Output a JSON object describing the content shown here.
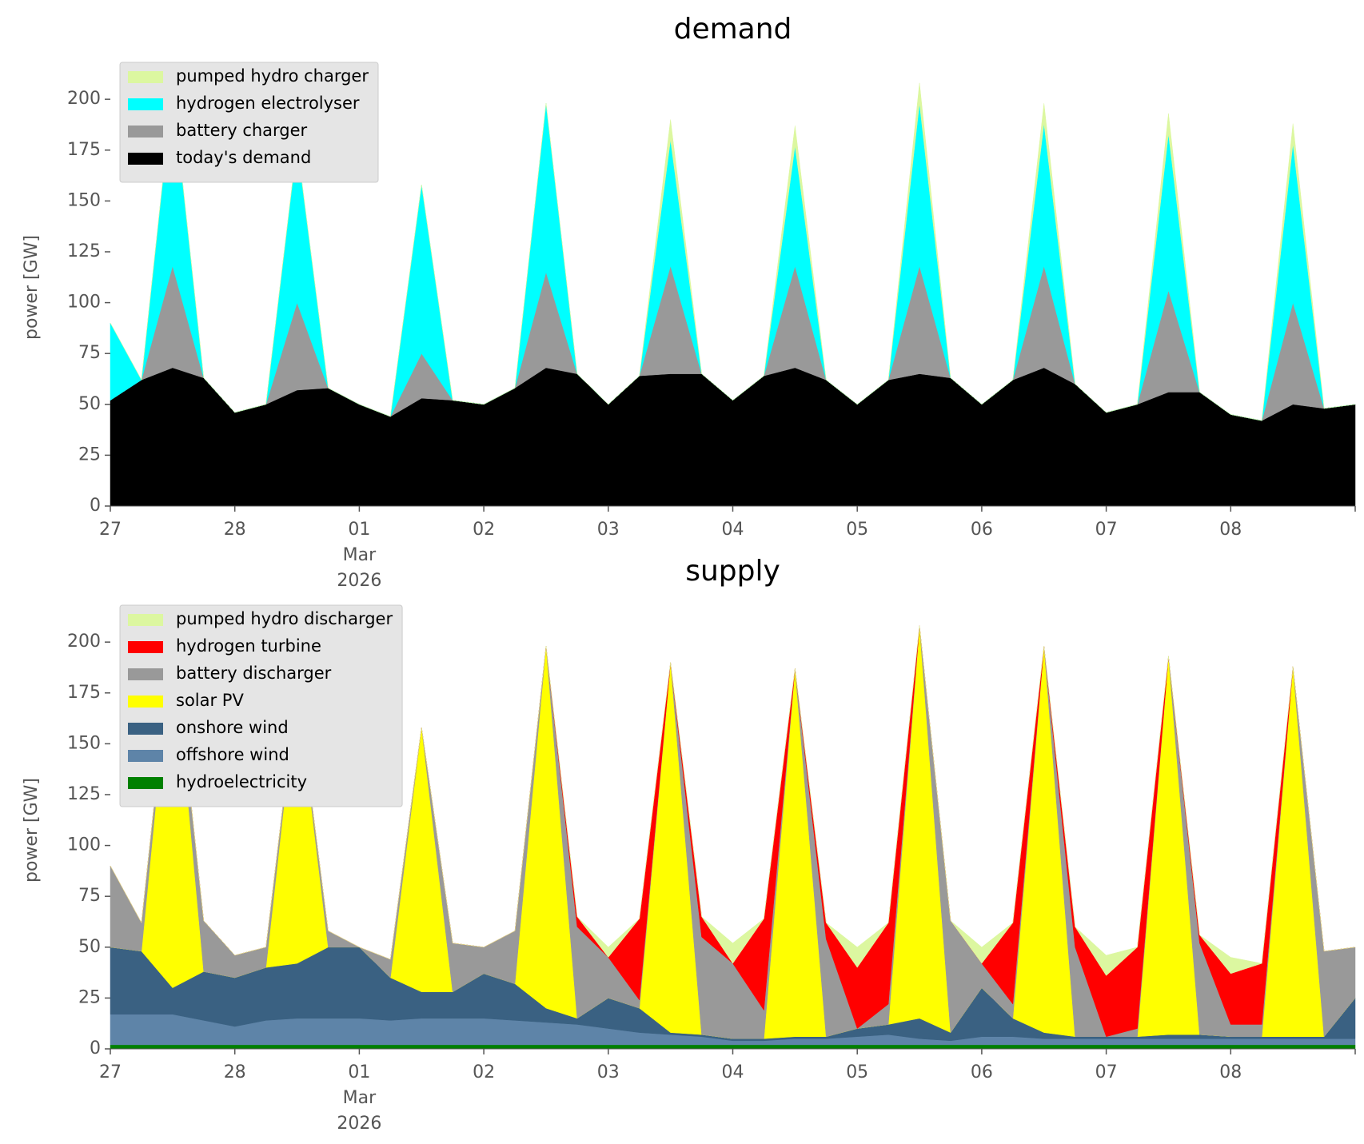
{
  "chart_data": [
    {
      "type": "stacked_area",
      "title": "demand",
      "ylabel": "power [GW]",
      "x_month": "Mar",
      "x_year": "2026",
      "x": [
        "2026-02-27T00:00",
        "2026-02-27T06:00",
        "2026-02-27T12:00",
        "2026-02-27T18:00",
        "2026-02-28T00:00",
        "2026-02-28T06:00",
        "2026-02-28T12:00",
        "2026-02-28T18:00",
        "2026-03-01T00:00",
        "2026-03-01T06:00",
        "2026-03-01T12:00",
        "2026-03-01T18:00",
        "2026-03-02T00:00",
        "2026-03-02T06:00",
        "2026-03-02T12:00",
        "2026-03-02T18:00",
        "2026-03-03T00:00",
        "2026-03-03T06:00",
        "2026-03-03T12:00",
        "2026-03-03T18:00",
        "2026-03-04T00:00",
        "2026-03-04T06:00",
        "2026-03-04T12:00",
        "2026-03-04T18:00",
        "2026-03-05T00:00",
        "2026-03-05T06:00",
        "2026-03-05T12:00",
        "2026-03-05T18:00",
        "2026-03-06T00:00",
        "2026-03-06T06:00",
        "2026-03-06T12:00",
        "2026-03-06T18:00",
        "2026-03-07T00:00",
        "2026-03-07T06:00",
        "2026-03-07T12:00",
        "2026-03-07T18:00",
        "2026-03-08T00:00",
        "2026-03-08T06:00",
        "2026-03-08T12:00",
        "2026-03-08T18:00",
        "2026-03-09T00:00"
      ],
      "series": [
        {
          "name": "today's demand",
          "color": "#000000",
          "values": [
            52,
            62,
            68,
            63,
            46,
            50,
            57,
            58,
            50,
            44,
            53,
            52,
            50,
            58,
            68,
            65,
            50,
            64,
            65,
            65,
            52,
            64,
            68,
            62,
            50,
            62,
            65,
            63,
            50,
            62,
            68,
            60,
            46,
            50,
            56,
            56,
            45,
            42,
            50,
            48,
            50
          ]
        },
        {
          "name": "battery charger",
          "color": "#999999",
          "values": [
            0,
            0,
            50,
            0,
            0,
            0,
            43,
            0,
            0,
            0,
            22,
            0,
            0,
            0,
            47,
            0,
            0,
            0,
            53,
            0,
            0,
            0,
            50,
            0,
            0,
            0,
            53,
            0,
            0,
            0,
            50,
            0,
            0,
            0,
            50,
            0,
            0,
            0,
            50,
            0,
            0
          ]
        },
        {
          "name": "hydrogen electrolyser",
          "color": "#00ffff",
          "values": [
            38,
            0,
            87,
            0,
            0,
            0,
            78,
            0,
            0,
            0,
            83,
            0,
            0,
            0,
            83,
            0,
            0,
            0,
            62,
            0,
            0,
            0,
            59,
            0,
            0,
            0,
            80,
            0,
            0,
            0,
            70,
            0,
            0,
            0,
            77,
            0,
            0,
            0,
            78,
            0,
            0
          ]
        },
        {
          "name": "pumped hydro charger",
          "color": "#dcf7a0",
          "values": [
            0,
            0,
            0,
            0,
            0,
            0,
            0,
            0,
            0,
            0,
            0,
            0,
            0,
            0,
            0,
            0,
            0,
            0,
            10,
            0,
            0,
            0,
            10,
            0,
            0,
            0,
            10,
            0,
            0,
            0,
            10,
            0,
            0,
            0,
            10,
            0,
            0,
            0,
            10,
            0,
            0
          ]
        }
      ],
      "xlim": [
        "2026-02-27T00:00",
        "2026-03-09T00:00"
      ],
      "xticks": [
        {
          "value": "2026-02-27T00:00",
          "label": "27"
        },
        {
          "value": "2026-02-28T00:00",
          "label": "28"
        },
        {
          "value": "2026-03-01T00:00",
          "label": "01"
        },
        {
          "value": "2026-03-02T00:00",
          "label": "02"
        },
        {
          "value": "2026-03-03T00:00",
          "label": "03"
        },
        {
          "value": "2026-03-04T00:00",
          "label": "04"
        },
        {
          "value": "2026-03-05T00:00",
          "label": "05"
        },
        {
          "value": "2026-03-06T00:00",
          "label": "06"
        },
        {
          "value": "2026-03-07T00:00",
          "label": "07"
        },
        {
          "value": "2026-03-08T00:00",
          "label": "08"
        }
      ],
      "ylim": [
        0,
        215
      ],
      "yticks": [
        0,
        25,
        50,
        75,
        100,
        125,
        150,
        175,
        200
      ],
      "legend": "upper left"
    },
    {
      "type": "stacked_area",
      "title": "supply",
      "ylabel": "power [GW]",
      "x_month": "Mar",
      "x_year": "2026",
      "x": [
        "2026-02-27T00:00",
        "2026-02-27T06:00",
        "2026-02-27T12:00",
        "2026-02-27T18:00",
        "2026-02-28T00:00",
        "2026-02-28T06:00",
        "2026-02-28T12:00",
        "2026-02-28T18:00",
        "2026-03-01T00:00",
        "2026-03-01T06:00",
        "2026-03-01T12:00",
        "2026-03-01T18:00",
        "2026-03-02T00:00",
        "2026-03-02T06:00",
        "2026-03-02T12:00",
        "2026-03-02T18:00",
        "2026-03-03T00:00",
        "2026-03-03T06:00",
        "2026-03-03T12:00",
        "2026-03-03T18:00",
        "2026-03-04T00:00",
        "2026-03-04T06:00",
        "2026-03-04T12:00",
        "2026-03-04T18:00",
        "2026-03-05T00:00",
        "2026-03-05T06:00",
        "2026-03-05T12:00",
        "2026-03-05T18:00",
        "2026-03-06T00:00",
        "2026-03-06T06:00",
        "2026-03-06T12:00",
        "2026-03-06T18:00",
        "2026-03-07T00:00",
        "2026-03-07T06:00",
        "2026-03-07T12:00",
        "2026-03-07T18:00",
        "2026-03-08T00:00",
        "2026-03-08T06:00",
        "2026-03-08T12:00",
        "2026-03-08T18:00",
        "2026-03-09T00:00"
      ],
      "series": [
        {
          "name": "hydroelectricity",
          "color": "#008000",
          "values": [
            2,
            2,
            2,
            2,
            2,
            2,
            2,
            2,
            2,
            2,
            2,
            2,
            2,
            2,
            2,
            2,
            2,
            2,
            2,
            2,
            2,
            2,
            2,
            2,
            2,
            2,
            2,
            2,
            2,
            2,
            2,
            2,
            2,
            2,
            2,
            2,
            2,
            2,
            2,
            2,
            2
          ]
        },
        {
          "name": "offshore wind",
          "color": "#5e84a8",
          "values": [
            15,
            15,
            15,
            12,
            9,
            12,
            13,
            13,
            13,
            12,
            13,
            13,
            13,
            12,
            11,
            10,
            8,
            6,
            5,
            4,
            2,
            2,
            3,
            3,
            4,
            5,
            3,
            2,
            4,
            4,
            3,
            3,
            3,
            3,
            3,
            3,
            3,
            3,
            3,
            3,
            3
          ]
        },
        {
          "name": "onshore wind",
          "color": "#3a6182",
          "values": [
            33,
            31,
            13,
            24,
            24,
            26,
            27,
            35,
            35,
            21,
            13,
            13,
            22,
            18,
            7,
            3,
            15,
            12,
            1,
            1,
            1,
            1,
            1,
            1,
            4,
            5,
            10,
            4,
            24,
            9,
            3,
            1,
            1,
            1,
            2,
            2,
            1,
            1,
            1,
            1,
            20
          ]
        },
        {
          "name": "solar PV",
          "color": "#ffff00",
          "values": [
            0,
            0,
            175,
            0,
            0,
            0,
            136,
            0,
            0,
            0,
            130,
            0,
            0,
            0,
            178,
            0,
            0,
            0,
            182,
            0,
            0,
            0,
            181,
            0,
            0,
            0,
            193,
            0,
            0,
            0,
            190,
            0,
            0,
            0,
            186,
            0,
            0,
            0,
            182,
            0,
            0
          ]
        },
        {
          "name": "battery discharger",
          "color": "#999999",
          "values": [
            40,
            14,
            0,
            25,
            11,
            10,
            0,
            8,
            0,
            9,
            0,
            24,
            13,
            26,
            0,
            45,
            20,
            4,
            0,
            48,
            37,
            14,
            0,
            48,
            0,
            10,
            0,
            55,
            12,
            7,
            0,
            44,
            0,
            4,
            0,
            45,
            6,
            6,
            0,
            42,
            25
          ]
        },
        {
          "name": "hydrogen turbine",
          "color": "#ff0000",
          "values": [
            0,
            0,
            0,
            0,
            0,
            0,
            0,
            0,
            0,
            0,
            0,
            0,
            0,
            0,
            0,
            5,
            0,
            40,
            0,
            10,
            0,
            45,
            0,
            8,
            30,
            40,
            0,
            0,
            0,
            40,
            0,
            10,
            30,
            40,
            0,
            4,
            25,
            30,
            0,
            0,
            0
          ]
        },
        {
          "name": "pumped hydro discharger",
          "color": "#dcf7a0",
          "values": [
            0,
            0,
            0,
            0,
            0,
            0,
            0,
            0,
            0,
            0,
            0,
            0,
            0,
            0,
            0,
            0,
            5,
            0,
            0,
            0,
            10,
            0,
            0,
            0,
            10,
            0,
            0,
            0,
            8,
            0,
            0,
            0,
            10,
            0,
            0,
            0,
            8,
            0,
            0,
            0,
            0
          ]
        }
      ],
      "xlim": [
        "2026-02-27T00:00",
        "2026-03-09T00:00"
      ],
      "xticks": [
        {
          "value": "2026-02-27T00:00",
          "label": "27"
        },
        {
          "value": "2026-02-28T00:00",
          "label": "28"
        },
        {
          "value": "2026-03-01T00:00",
          "label": "01"
        },
        {
          "value": "2026-03-02T00:00",
          "label": "02"
        },
        {
          "value": "2026-03-03T00:00",
          "label": "03"
        },
        {
          "value": "2026-03-04T00:00",
          "label": "04"
        },
        {
          "value": "2026-03-05T00:00",
          "label": "05"
        },
        {
          "value": "2026-03-06T00:00",
          "label": "06"
        },
        {
          "value": "2026-03-07T00:00",
          "label": "07"
        },
        {
          "value": "2026-03-08T00:00",
          "label": "08"
        }
      ],
      "ylim": [
        0,
        215
      ],
      "yticks": [
        0,
        25,
        50,
        75,
        100,
        125,
        150,
        175,
        200
      ],
      "legend": "upper left"
    }
  ]
}
